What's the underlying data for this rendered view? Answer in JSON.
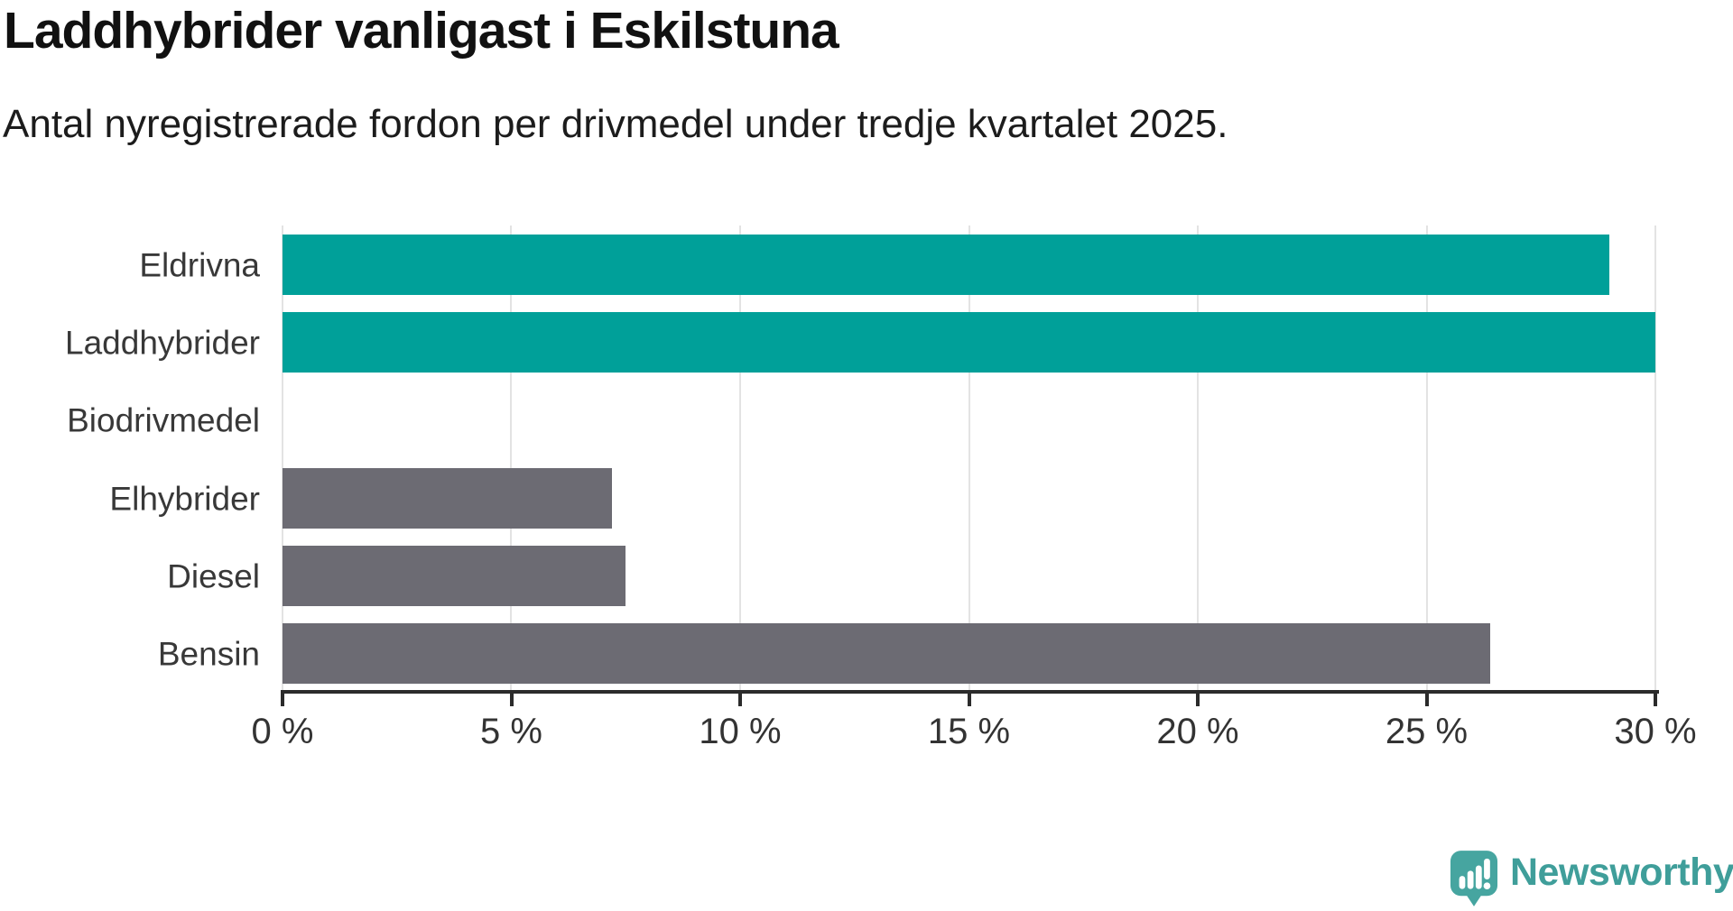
{
  "header": {
    "title": "Laddhybrider vanligast i Eskilstuna",
    "subtitle": "Antal nyregistrerade fordon per drivmedel under tredje kvartalet 2025."
  },
  "chart_data": {
    "type": "bar",
    "orientation": "horizontal",
    "title": "Laddhybrider vanligast i Eskilstuna",
    "subtitle": "Antal nyregistrerade fordon per drivmedel under tredje kvartalet 2025.",
    "categories": [
      "Eldrivna",
      "Laddhybrider",
      "Biodrivmedel",
      "Elhybrider",
      "Diesel",
      "Bensin"
    ],
    "values": [
      29.0,
      30.0,
      0,
      7.2,
      7.5,
      26.4
    ],
    "value_unit": "%",
    "xlim": [
      0,
      30
    ],
    "x_ticks": [
      0,
      5,
      10,
      15,
      20,
      25,
      30
    ],
    "x_tick_labels": [
      "0 %",
      "5 %",
      "10 %",
      "15 %",
      "20 %",
      "25 %",
      "30 %"
    ],
    "grid": "vertical",
    "legend": "none",
    "bar_colors": [
      "#00a099",
      "#00a099",
      "#00a099",
      "#6c6b73",
      "#6c6b73",
      "#6c6b73"
    ]
  },
  "colors": {
    "teal": "#00a099",
    "gray": "#6c6b73",
    "gridline": "#e3e3e3",
    "axis": "#2b2b2b",
    "tick_text": "#333333",
    "category_text": "#383838",
    "title_text": "#111111",
    "background": "#ffffff",
    "logo_icon": "#46a5a0",
    "logo_text": "#3f9e9a"
  },
  "footer": {
    "brand": "Newsworthy",
    "brand_icon": "newsworthy-speech-bubble-chart-icon"
  }
}
